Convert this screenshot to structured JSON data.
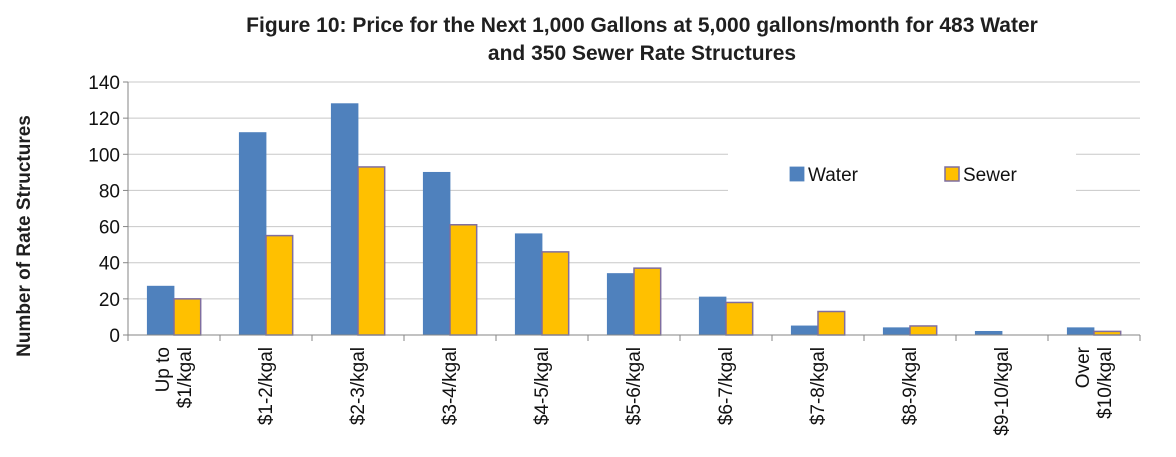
{
  "chart_data": {
    "type": "bar",
    "title_lines": [
      "Figure 10: Price for the Next 1,000 Gallons at 5,000 gallons/month for 483 Water",
      "and 350 Sewer Rate Structures"
    ],
    "xlabel": "",
    "ylabel": "Number of Rate Structures",
    "ylim": [
      0,
      140
    ],
    "yticks": [
      0,
      20,
      40,
      60,
      80,
      100,
      120,
      140
    ],
    "grid": true,
    "legend_position": "right",
    "categories": [
      [
        "Up to",
        "$1/kgal"
      ],
      [
        "$1-2/kgal"
      ],
      [
        "$2-3/kgal"
      ],
      [
        "$3-4/kgal"
      ],
      [
        "$4-5/kgal"
      ],
      [
        "$5-6/kgal"
      ],
      [
        "$6-7/kgal"
      ],
      [
        "$7-8/kgal"
      ],
      [
        "$8-9/kgal"
      ],
      [
        "$9-10/kgal"
      ],
      [
        "Over",
        "$10/kgal"
      ]
    ],
    "series": [
      {
        "name": "Water",
        "color": "#4f81bd",
        "stroke": "#4f81bd",
        "values": [
          27,
          112,
          128,
          90,
          56,
          34,
          21,
          5,
          4,
          2,
          4
        ]
      },
      {
        "name": "Sewer",
        "color": "#ffc000",
        "stroke": "#7f6ea0",
        "values": [
          20,
          55,
          93,
          61,
          46,
          37,
          18,
          13,
          5,
          0,
          2
        ]
      }
    ]
  }
}
